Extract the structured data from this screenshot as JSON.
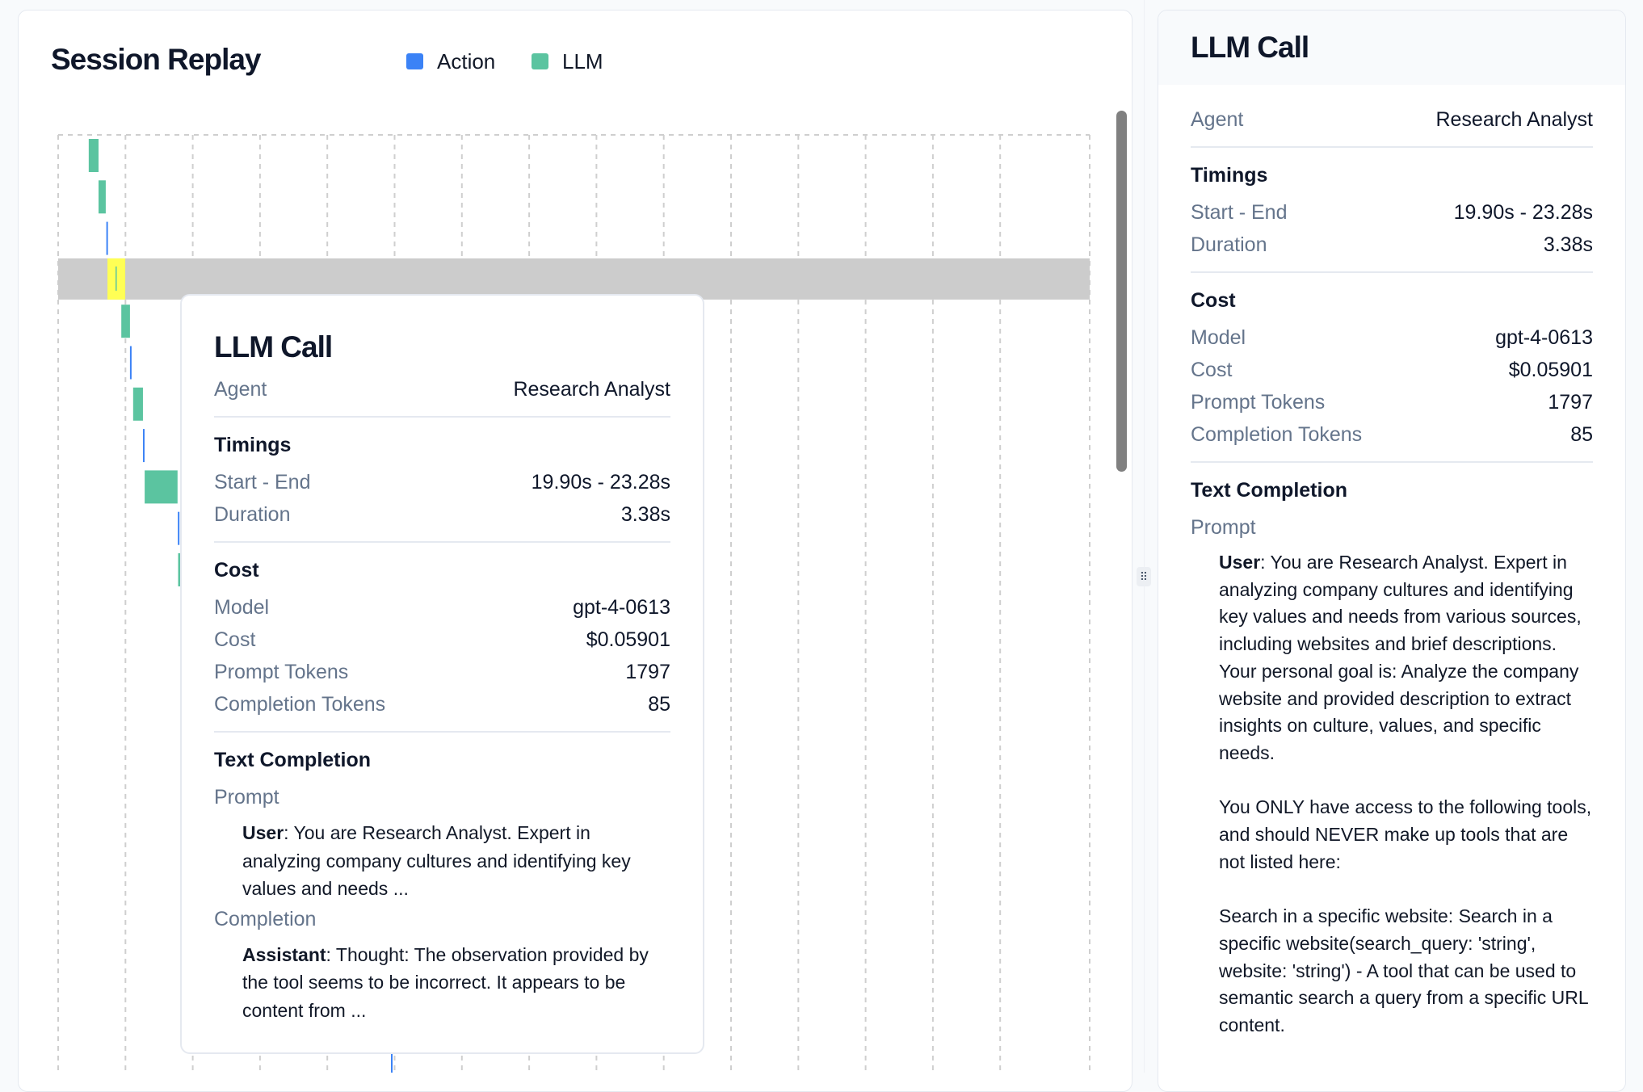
{
  "session": {
    "title": "Session Replay",
    "legend": [
      {
        "label": "Action",
        "color": "#3b82f6"
      },
      {
        "label": "LLM",
        "color": "#5bc4a0"
      }
    ]
  },
  "chart_data": {
    "type": "timeline",
    "x_unit": "s",
    "grid": true,
    "highlight_color": "#cccccc",
    "selected_color": "#ffff55",
    "rows": [
      {
        "kind": "LLM",
        "start": 10.6,
        "end": 14.0
      },
      {
        "kind": "LLM",
        "start": 14.0,
        "end": 16.5
      },
      {
        "kind": "Action",
        "start": 16.7,
        "end": 17.1
      },
      {
        "kind": "LLM",
        "start": 19.9,
        "end": 23.28,
        "selected": true
      },
      {
        "kind": "LLM",
        "start": 21.9,
        "end": 24.9
      },
      {
        "kind": "Action",
        "start": 24.9,
        "end": 25.2
      },
      {
        "kind": "LLM",
        "start": 26.0,
        "end": 29.4
      },
      {
        "kind": "Action",
        "start": 29.4,
        "end": 29.7
      },
      {
        "kind": "LLM",
        "start": 30.0,
        "end": 41.4
      },
      {
        "kind": "Action",
        "start": 41.5,
        "end": 41.8
      },
      {
        "kind": "LLM",
        "start": 41.6,
        "end": 45.0
      },
      {
        "kind": "Action",
        "start": 115.4,
        "end": 115.8,
        "row": 22
      }
    ]
  },
  "tooltip": {
    "title": "LLM Call",
    "agent_label": "Agent",
    "agent_value": "Research Analyst",
    "timings_heading": "Timings",
    "start_end_label": "Start - End",
    "start_end_value": "19.90s - 23.28s",
    "duration_label": "Duration",
    "duration_value": "3.38s",
    "cost_heading": "Cost",
    "model_label": "Model",
    "model_value": "gpt-4-0613",
    "cost_label": "Cost",
    "cost_value": "$0.05901",
    "prompt_tokens_label": "Prompt Tokens",
    "prompt_tokens_value": "1797",
    "completion_tokens_label": "Completion Tokens",
    "completion_tokens_value": "85",
    "text_heading": "Text Completion",
    "prompt_label": "Prompt",
    "prompt_role": "User",
    "prompt_text": ": You are Research Analyst. Expert in analyzing company cultures and identifying key values and needs ...",
    "completion_label": "Completion",
    "completion_role": "Assistant",
    "completion_text": ": Thought: The observation provided by the tool seems to be incorrect. It appears to be content from ..."
  },
  "detail": {
    "title": "LLM Call",
    "agent_label": "Agent",
    "agent_value": "Research Analyst",
    "timings_heading": "Timings",
    "start_end_label": "Start - End",
    "start_end_value": "19.90s - 23.28s",
    "duration_label": "Duration",
    "duration_value": "3.38s",
    "cost_heading": "Cost",
    "model_label": "Model",
    "model_value": "gpt-4-0613",
    "cost_label": "Cost",
    "cost_value": "$0.05901",
    "prompt_tokens_label": "Prompt Tokens",
    "prompt_tokens_value": "1797",
    "completion_tokens_label": "Completion Tokens",
    "completion_tokens_value": "85",
    "text_heading": "Text Completion",
    "prompt_label": "Prompt",
    "prompt_role": "User",
    "prompt_text": ": You are Research Analyst. Expert in analyzing company cultures and identifying key values and needs from various sources, including websites and brief descriptions.\nYour personal goal is: Analyze the company website and provided description to extract insights on culture, values, and specific needs.\n\nYou ONLY have access to the following tools, and should NEVER make up tools that are not listed here:\n\nSearch in a specific website: Search in a specific website(search_query: 'string', website: 'string') - A tool that can be used to semantic search a query from a specific URL content."
  },
  "splitter": {
    "icon": "drag-handle-icon"
  }
}
